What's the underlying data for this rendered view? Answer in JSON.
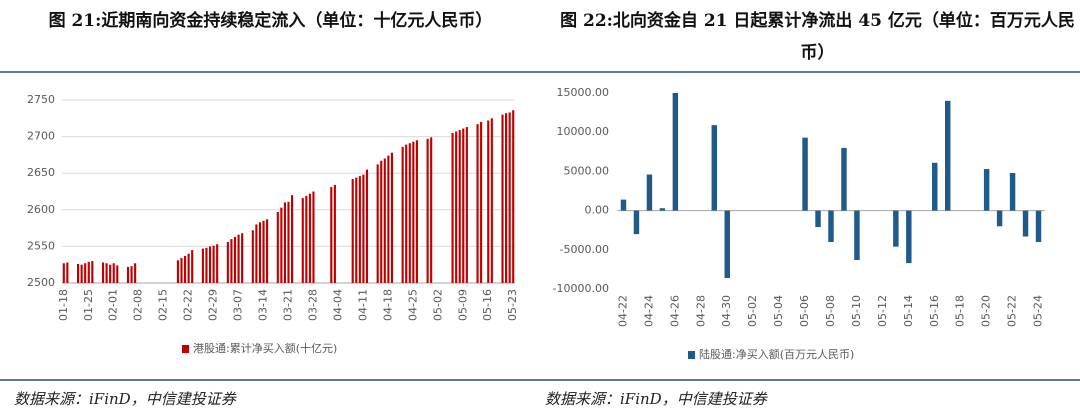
{
  "chart_data": [
    {
      "type": "bar",
      "title": "图 21:近期南向资金持续稳定流入（单位：十亿元人民币）",
      "source": "数据来源：iFinD，中信建投证券",
      "categories": [
        "01-18",
        null,
        null,
        null,
        null,
        null,
        null,
        "01-25",
        null,
        null,
        null,
        null,
        null,
        null,
        "02-01",
        null,
        null,
        null,
        null,
        null,
        null,
        "02-08",
        null,
        null,
        null,
        null,
        null,
        null,
        "02-15",
        null,
        null,
        null,
        null,
        null,
        null,
        "02-22",
        null,
        null,
        null,
        null,
        null,
        null,
        "02-29",
        null,
        null,
        null,
        null,
        null,
        null,
        "03-07",
        null,
        null,
        null,
        null,
        null,
        null,
        "03-14",
        null,
        null,
        null,
        null,
        null,
        null,
        "03-21",
        null,
        null,
        null,
        null,
        null,
        null,
        "03-28",
        null,
        null,
        null,
        null,
        null,
        null,
        "04-04",
        null,
        null,
        null,
        null,
        null,
        null,
        "04-11",
        null,
        null,
        null,
        null,
        null,
        null,
        "04-18",
        null,
        null,
        null,
        null,
        null,
        null,
        "04-25",
        null,
        null,
        null,
        null,
        null,
        null,
        "05-02",
        null,
        null,
        null,
        null,
        null,
        null,
        "05-09",
        null,
        null,
        null,
        null,
        null,
        null,
        "05-16",
        null,
        null,
        null,
        null,
        null,
        null,
        "05-23"
      ],
      "series": [
        {
          "name": "港股通:累计净买入额(十亿元)",
          "color": "#c00000",
          "values": [
            2527,
            2528,
            null,
            null,
            2526,
            2525,
            2527,
            2529,
            2530,
            null,
            null,
            2528,
            2527,
            2525,
            2527,
            2524,
            null,
            null,
            2522,
            2523,
            2527,
            null,
            null,
            null,
            null,
            null,
            null,
            null,
            null,
            null,
            null,
            null,
            2531,
            2534,
            2537,
            2540,
            2545,
            null,
            null,
            2547,
            2548,
            2550,
            2551,
            2553,
            null,
            null,
            2556,
            2560,
            2563,
            2566,
            2568,
            null,
            null,
            2572,
            2580,
            2583,
            2585,
            2587,
            null,
            null,
            2597,
            2603,
            2610,
            2611,
            2620,
            null,
            null,
            2616,
            2619,
            2622,
            2625,
            null,
            null,
            null,
            null,
            2631,
            2634,
            null,
            null,
            null,
            null,
            2642,
            2644,
            2646,
            2648,
            2655,
            null,
            null,
            2662,
            2667,
            2670,
            2674,
            2678,
            null,
            null,
            2686,
            2689,
            2691,
            2693,
            2695,
            null,
            null,
            2697,
            2699,
            null,
            null,
            null,
            null,
            null,
            2705,
            2707,
            2709,
            2711,
            2713,
            null,
            null,
            2717,
            2720,
            null,
            2722,
            2725,
            null,
            null,
            2730,
            2732,
            2733,
            2736
          ]
        }
      ],
      "ylim": [
        2500,
        2750
      ],
      "yticks": [
        2500,
        2550,
        2600,
        2650,
        2700,
        2750
      ],
      "grid": true
    },
    {
      "type": "bar",
      "title": "图 22:北向资金自 21 日起累计净流出 45 亿元（单位：百万元人民币）",
      "source": "数据来源：iFinD，中信建投证券",
      "categories": [
        "04-22",
        null,
        "04-24",
        null,
        "04-26",
        null,
        "04-28",
        null,
        "04-30",
        null,
        "05-02",
        null,
        "05-04",
        null,
        "05-06",
        null,
        "05-08",
        null,
        "05-10",
        null,
        "05-12",
        null,
        "05-14",
        null,
        "05-16",
        null,
        "05-18",
        null,
        "05-20",
        null,
        "05-22",
        null,
        "05-24"
      ],
      "series": [
        {
          "name": "陆股通:净买入额(百万元人民币)",
          "color": "#1f5a8b",
          "values": [
            1400,
            -3000,
            4600,
            300,
            15000,
            null,
            null,
            10900,
            -8600,
            null,
            null,
            null,
            null,
            null,
            9300,
            -2100,
            -4000,
            8000,
            -6300,
            null,
            null,
            -4600,
            -6700,
            null,
            6100,
            14000,
            null,
            null,
            5300,
            -2000,
            4800,
            -3300,
            -4000
          ]
        }
      ],
      "ylim": [
        -10000,
        15000
      ],
      "yticks": [
        {
          "value": -10000,
          "label": "-10000.00"
        },
        {
          "value": -5000,
          "label": "-5000.00"
        },
        {
          "value": 0,
          "label": "0.00"
        },
        {
          "value": 5000,
          "label": "5000.00"
        },
        {
          "value": 10000,
          "label": "10000.00"
        },
        {
          "value": 15000,
          "label": "15000.00"
        }
      ],
      "grid": false
    }
  ]
}
